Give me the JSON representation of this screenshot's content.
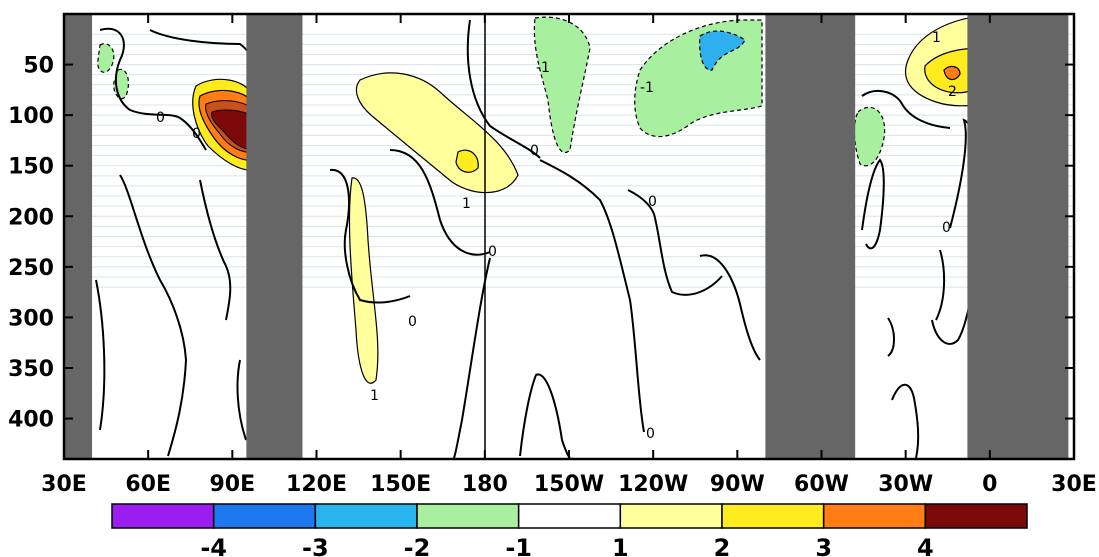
{
  "chart_data": {
    "type": "heatmap",
    "title": "",
    "xlabel": "",
    "ylabel": "",
    "x_ticks": [
      "30E",
      "60E",
      "90E",
      "120E",
      "150E",
      "180",
      "150W",
      "120W",
      "90W",
      "60W",
      "30W",
      "0",
      "30E"
    ],
    "y_ticks": [
      "50",
      "100",
      "150",
      "200",
      "250",
      "300",
      "350",
      "400"
    ],
    "xlim": [
      30,
      390
    ],
    "ylim": [
      0,
      440
    ],
    "y_inverted": true,
    "grid": false,
    "masked_longitude_bands": [
      [
        30,
        40
      ],
      [
        95,
        115
      ],
      [
        280,
        312
      ],
      [
        352,
        388
      ]
    ],
    "colorbar": {
      "orientation": "horizontal",
      "placement": "bottom",
      "labels": [
        "-4",
        "-3",
        "-2",
        "-1",
        "1",
        "2",
        "3",
        "4"
      ],
      "colors": [
        "#9b1df0",
        "#1e78f0",
        "#29b4f0",
        "#a8f0a0",
        "#ffffff",
        "#ffff9b",
        "#ffeb1e",
        "#ff7d14",
        "#7d0a0a"
      ]
    },
    "contour_labels": [
      "0",
      "0",
      "0",
      "0",
      "0",
      "0",
      "0",
      "0",
      "1",
      "1",
      "1",
      "2",
      "-1",
      "-1"
    ]
  },
  "colors": {
    "mask": "#666666",
    "contour": "#000000"
  }
}
